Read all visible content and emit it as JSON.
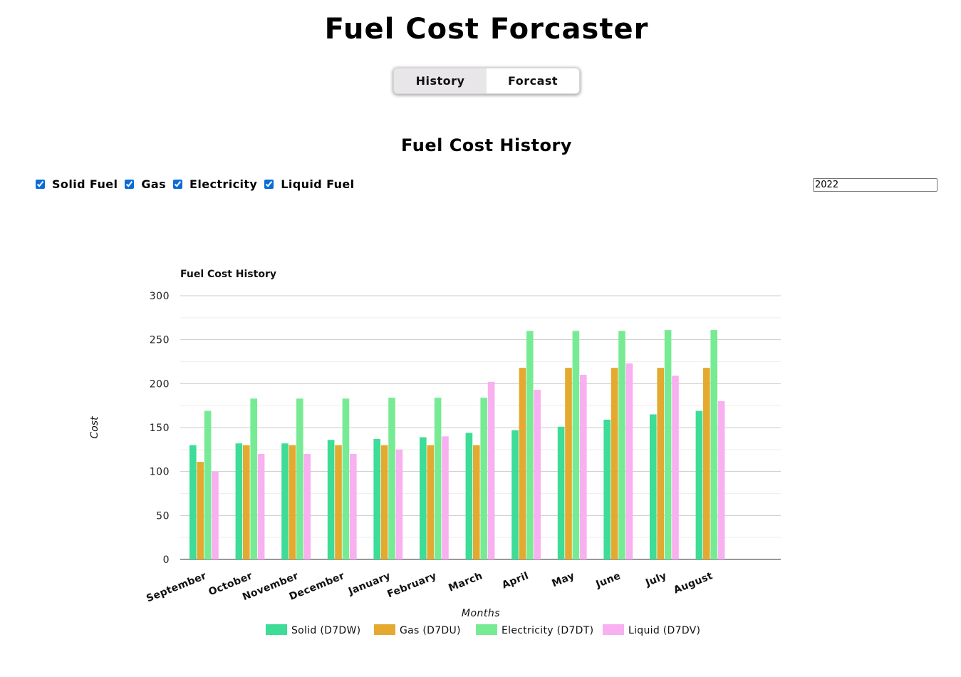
{
  "header": {
    "title": "Fuel Cost Forcaster"
  },
  "tabs": [
    {
      "label": "History",
      "active": true
    },
    {
      "label": "Forcast",
      "active": false
    }
  ],
  "section": {
    "title": "Fuel Cost History"
  },
  "filters": [
    {
      "label": "Solid Fuel",
      "checked": true
    },
    {
      "label": "Gas",
      "checked": true
    },
    {
      "label": "Electricity",
      "checked": true
    },
    {
      "label": "Liquid Fuel",
      "checked": true
    }
  ],
  "year": {
    "value": "2022"
  },
  "chart_data": {
    "type": "bar",
    "title": "Fuel Cost History",
    "xlabel": "Months",
    "ylabel": "Cost",
    "ylim": [
      0,
      300
    ],
    "yticks": [
      0,
      50,
      100,
      150,
      200,
      250,
      300
    ],
    "grid": true,
    "legend": "bottom",
    "categories": [
      "September",
      "October",
      "November",
      "December",
      "January",
      "February",
      "March",
      "April",
      "May",
      "June",
      "July",
      "August"
    ],
    "series": [
      {
        "name": "Solid (D7DW)",
        "color": "#3ddc97",
        "values": [
          130,
          132,
          132,
          136,
          137,
          139,
          144,
          147,
          151,
          159,
          165,
          169
        ]
      },
      {
        "name": "Gas (D7DU)",
        "color": "#e4a92f",
        "values": [
          111,
          130,
          130,
          130,
          130,
          130,
          130,
          218,
          218,
          218,
          218,
          218
        ]
      },
      {
        "name": "Electricity (D7DT)",
        "color": "#77eb93",
        "values": [
          169,
          183,
          183,
          183,
          184,
          184,
          184,
          260,
          260,
          260,
          261,
          261
        ]
      },
      {
        "name": "Liquid (D7DV)",
        "color": "#f8b0f0",
        "values": [
          100,
          120,
          120,
          120,
          125,
          140,
          202,
          193,
          210,
          223,
          209,
          180
        ]
      }
    ]
  }
}
